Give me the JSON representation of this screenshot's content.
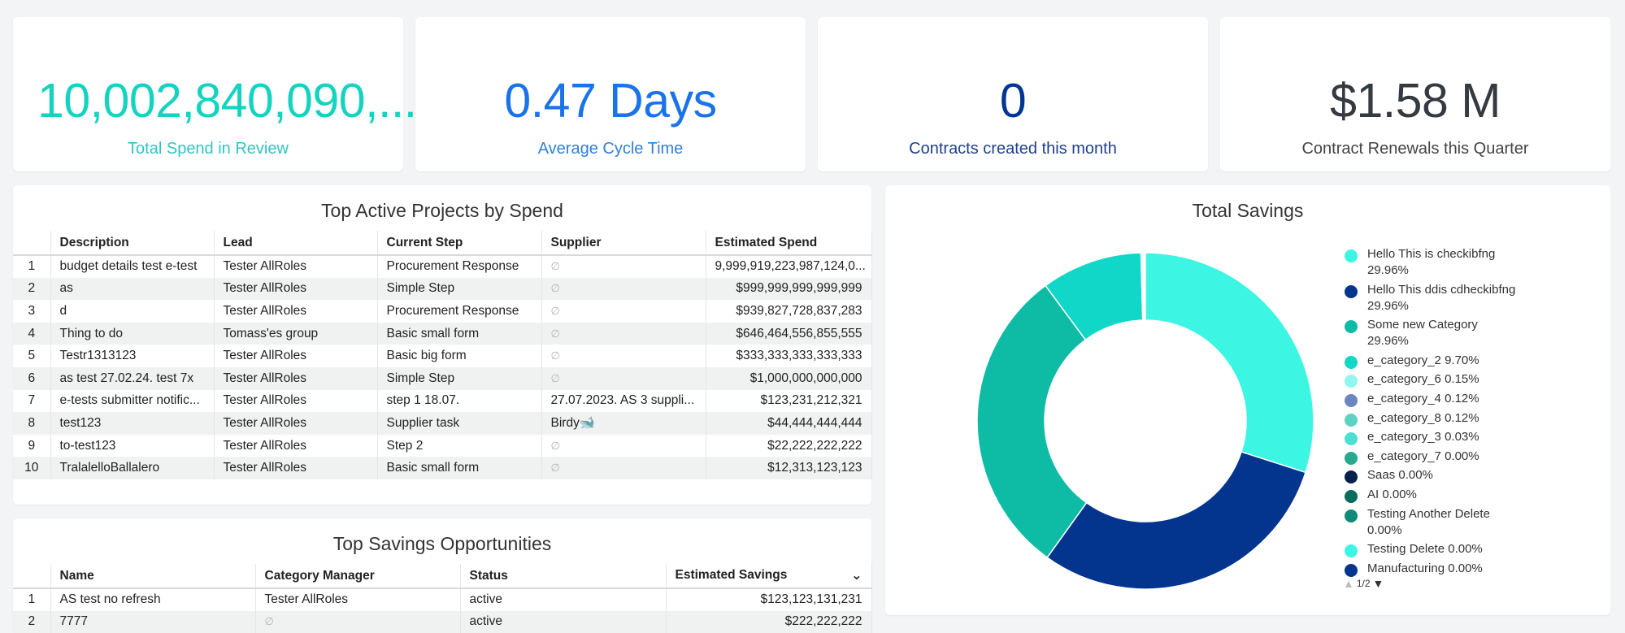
{
  "kpis": [
    {
      "value": "10,002,840,090,...",
      "label": "Total Spend in Review",
      "color": "#15d3c0",
      "label_color": "#32c5c2"
    },
    {
      "value": "0.47 Days",
      "label": "Average Cycle Time",
      "color": "#1a73e8",
      "label_color": "#2f80d9"
    },
    {
      "value": "0",
      "label": "Contracts created this month",
      "color": "#003591",
      "label_color": "#1f3f8f"
    },
    {
      "value": "$1.58 M",
      "label": "Contract Renewals this Quarter",
      "color": "#343a40",
      "label_color": "#444"
    }
  ],
  "projects": {
    "title": "Top Active Projects by Spend",
    "columns": [
      "",
      "Description",
      "Lead",
      "Current Step",
      "Supplier",
      "Estimated Spend"
    ],
    "rows": [
      {
        "idx": "1",
        "description": "budget details test e-test",
        "lead": "Tester AllRoles",
        "step": "Procurement Response",
        "supplier": "∅",
        "spend": "9,999,919,223,987,124,0..."
      },
      {
        "idx": "2",
        "description": "as",
        "lead": "Tester AllRoles",
        "step": "Simple Step",
        "supplier": "∅",
        "spend": "$999,999,999,999,999"
      },
      {
        "idx": "3",
        "description": "d",
        "lead": "Tester AllRoles",
        "step": "Procurement Response",
        "supplier": "∅",
        "spend": "$939,827,728,837,283"
      },
      {
        "idx": "4",
        "description": "Thing to do",
        "lead": "Tomass'es group",
        "step": "Basic small form",
        "supplier": "∅",
        "spend": "$646,464,556,855,555"
      },
      {
        "idx": "5",
        "description": "Testr1313123",
        "lead": "Tester AllRoles",
        "step": "Basic big form",
        "supplier": "∅",
        "spend": "$333,333,333,333,333"
      },
      {
        "idx": "6",
        "description": "as test 27.02.24. test 7x",
        "lead": "Tester AllRoles",
        "step": "Simple Step",
        "supplier": "∅",
        "spend": "$1,000,000,000,000"
      },
      {
        "idx": "7",
        "description": "e-tests submitter notific...",
        "lead": "Tester AllRoles",
        "step": "step 1 18.07.",
        "supplier": "27.07.2023. AS 3 suppli...",
        "spend": "$123,231,212,321"
      },
      {
        "idx": "8",
        "description": "test123",
        "lead": "Tester AllRoles",
        "step": "Supplier task",
        "supplier": "Birdy🐋",
        "spend": "$44,444,444,444"
      },
      {
        "idx": "9",
        "description": "to-test123",
        "lead": "Tester AllRoles",
        "step": "Step 2",
        "supplier": "∅",
        "spend": "$22,222,222,222"
      },
      {
        "idx": "10",
        "description": "TralalelloBallalero",
        "lead": "Tester AllRoles",
        "step": "Basic small form",
        "supplier": "∅",
        "spend": "$12,313,123,123"
      }
    ]
  },
  "savings_opps": {
    "title": "Top Savings Opportunities",
    "columns": [
      "",
      "Name",
      "Category Manager",
      "Status",
      "Estimated Savings"
    ],
    "rows": [
      {
        "idx": "1",
        "name": "AS test no refresh",
        "manager": "Tester AllRoles",
        "status": "active",
        "savings": "$123,123,131,231"
      },
      {
        "idx": "2",
        "name": "7777",
        "manager": "∅",
        "status": "active",
        "savings": "$222,222,222"
      }
    ]
  },
  "total_savings": {
    "title": "Total Savings",
    "pager": "1/2"
  },
  "chart_data": {
    "type": "pie",
    "title": "Total Savings",
    "legend": "right",
    "slices": [
      {
        "label": "Hello This is checkibfng",
        "value": 29.96,
        "color": "#3cf5e3"
      },
      {
        "label": "Hello This ddis cdheckibfng",
        "value": 29.96,
        "color": "#03358f"
      },
      {
        "label": "Some new Category",
        "value": 29.96,
        "color": "#0ebba5"
      },
      {
        "label": "e_category_2",
        "value": 9.7,
        "color": "#10d7c7"
      },
      {
        "label": "e_category_6",
        "value": 0.15,
        "color": "#8ff7ef"
      },
      {
        "label": "e_category_4",
        "value": 0.12,
        "color": "#6c86c2"
      },
      {
        "label": "e_category_8",
        "value": 0.12,
        "color": "#5fd2c4"
      },
      {
        "label": "e_category_3",
        "value": 0.03,
        "color": "#4ddfd3"
      },
      {
        "label": "e_category_7",
        "value": 0.0,
        "color": "#28a890"
      },
      {
        "label": "Saas",
        "value": 0.0,
        "color": "#08204c"
      },
      {
        "label": "AI",
        "value": 0.0,
        "color": "#0b6b5c"
      },
      {
        "label": "Testing Another Delete",
        "value": 0.0,
        "color": "#118a7a"
      },
      {
        "label": "Testing Delete",
        "value": 0.0,
        "color": "#3cf5e3"
      },
      {
        "label": "Manufacturing",
        "value": 0.0,
        "color": "#03358f"
      }
    ],
    "legend_text": [
      [
        "Hello This is checkibfng",
        "29.96%"
      ],
      [
        "Hello This ddis cdheckibfng",
        "29.96%"
      ],
      [
        "Some new Category",
        "29.96%"
      ],
      [
        "e_category_2 9.70%"
      ],
      [
        "e_category_6 0.15%"
      ],
      [
        "e_category_4 0.12%"
      ],
      [
        "e_category_8 0.12%"
      ],
      [
        "e_category_3 0.03%"
      ],
      [
        "e_category_7 0.00%"
      ],
      [
        "Saas 0.00%"
      ],
      [
        "AI 0.00%"
      ],
      [
        "Testing Another Delete",
        "0.00%"
      ],
      [
        "Testing Delete 0.00%"
      ],
      [
        "Manufacturing 0.00%"
      ]
    ]
  }
}
